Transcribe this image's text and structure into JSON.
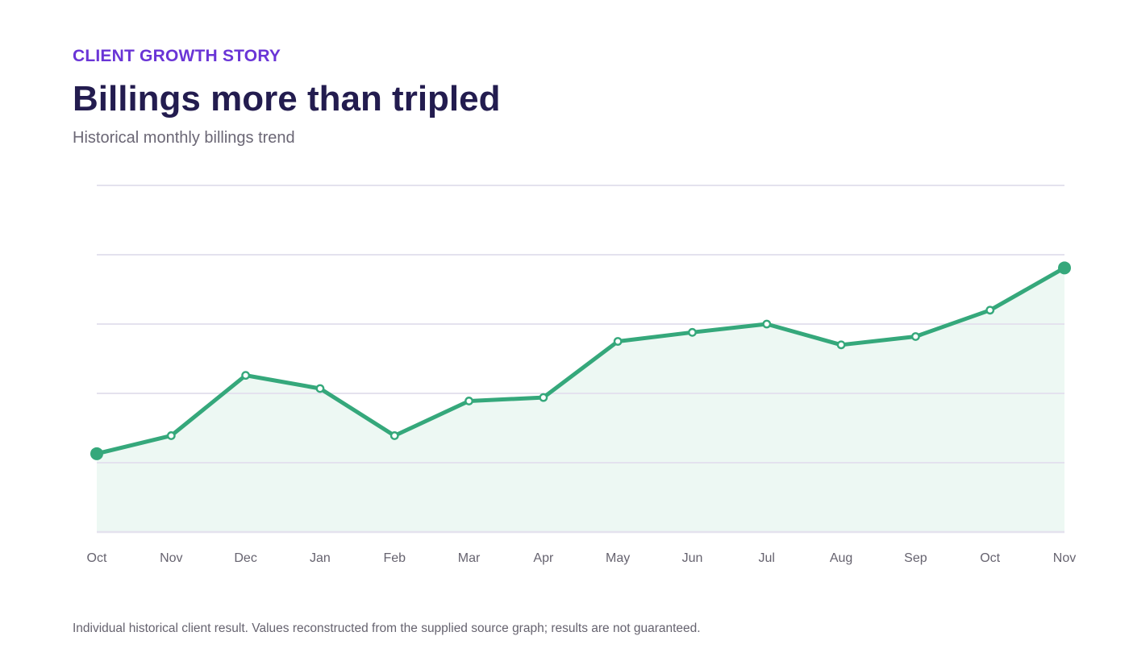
{
  "header": {
    "eyebrow": "CLIENT GROWTH STORY",
    "title": "Billings more than tripled",
    "subtitle": "Historical monthly billings trend"
  },
  "footnote": "Individual historical client result. Values reconstructed from the supplied source graph; results are not guaranteed.",
  "colors": {
    "line": "#35a87b",
    "area": "#edf8f3",
    "grid": "#e4e2ee",
    "eyebrow": "#6a35d6",
    "title": "#231c4f"
  },
  "chart_data": {
    "type": "area",
    "title": "Billings more than tripled",
    "subtitle": "Historical monthly billings trend",
    "xlabel": "",
    "ylabel": "",
    "categories": [
      "Oct",
      "Nov",
      "Dec",
      "Jan",
      "Feb",
      "Mar",
      "Apr",
      "May",
      "Jun",
      "Jul",
      "Aug",
      "Sep",
      "Oct",
      "Nov"
    ],
    "series": [
      {
        "values": [
          1.13,
          1.39,
          2.26,
          2.07,
          1.39,
          1.89,
          1.94,
          2.75,
          2.88,
          3.0,
          2.7,
          2.82,
          3.2,
          3.81
        ]
      }
    ],
    "ylim": [
      0,
      5
    ],
    "y_ticks": [
      0,
      1,
      2,
      3,
      4,
      5
    ],
    "y_tick_labels_visible": false,
    "grid": true,
    "legend": "none",
    "endpoints_highlighted": true
  }
}
